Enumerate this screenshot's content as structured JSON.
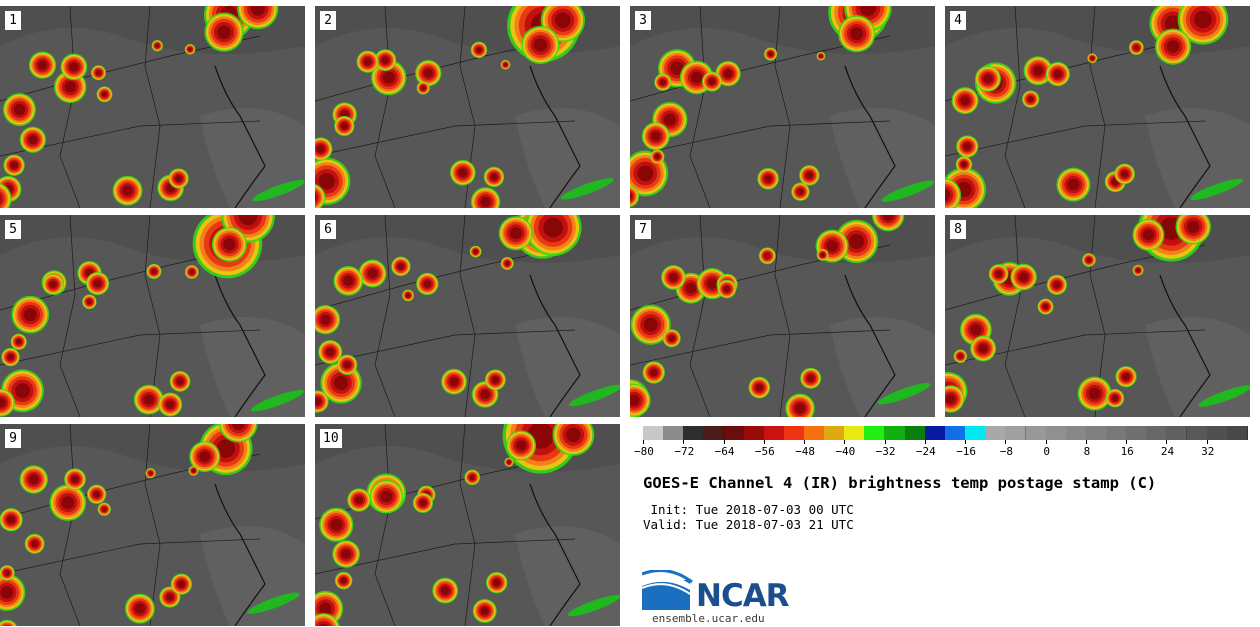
{
  "figure": {
    "title": "GOES-E Channel 4 (IR) brightness temp postage stamp (C)",
    "init_line": " Init: Tue 2018-07-03 00 UTC",
    "valid_line": "Valid: Tue 2018-07-03 21 UTC"
  },
  "panels": [
    {
      "label": "1"
    },
    {
      "label": "2"
    },
    {
      "label": "3"
    },
    {
      "label": "4"
    },
    {
      "label": "5"
    },
    {
      "label": "6"
    },
    {
      "label": "7"
    },
    {
      "label": "8"
    },
    {
      "label": "9"
    },
    {
      "label": "10"
    }
  ],
  "colorbar": {
    "min": -80,
    "max": 40,
    "step": 4,
    "colors": [
      "#c8c8c8",
      "#8c8c8c",
      "#2e2e2e",
      "#4a1c1c",
      "#6a0d0d",
      "#9a0a0a",
      "#cc1111",
      "#ee3311",
      "#f47011",
      "#e0a810",
      "#e8e812",
      "#22ee11",
      "#10b010",
      "#0a7f0a",
      "#0a1aa0",
      "#0f70e8",
      "#00e8f0",
      "#a8a8a8",
      "#a0a0a0",
      "#989898",
      "#909090",
      "#888888",
      "#808080",
      "#787878",
      "#707070",
      "#686868",
      "#606060",
      "#585858",
      "#505050",
      "#484848"
    ],
    "tick_labels": [
      "−80",
      "−72",
      "−64",
      "−56",
      "−48",
      "−40",
      "−32",
      "−24",
      "−16",
      "−8",
      "0",
      "8",
      "16",
      "24",
      "32"
    ],
    "tick_values": [
      -80,
      -72,
      -64,
      -56,
      -48,
      -40,
      -32,
      -24,
      -16,
      -8,
      0,
      8,
      16,
      24,
      32
    ]
  },
  "logo": {
    "text": "NCAR",
    "url": "ensemble.ucar.edu"
  }
}
